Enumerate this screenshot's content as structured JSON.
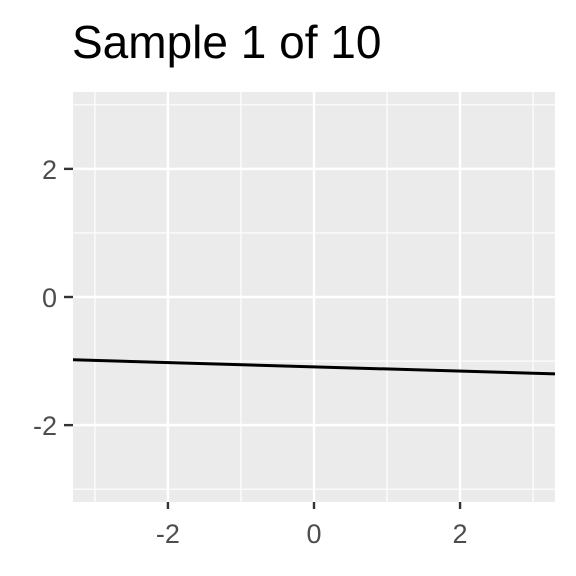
{
  "chart_data": {
    "type": "line",
    "title": "Sample 1 of 10",
    "xlabel": "",
    "ylabel": "",
    "xlim": [
      -3.3,
      3.3
    ],
    "ylim": [
      -3.2,
      3.2
    ],
    "x_ticks": [
      -2,
      0,
      2
    ],
    "x_tick_labels": [
      "-2",
      "0",
      "2"
    ],
    "y_ticks": [
      -2,
      0,
      2
    ],
    "y_tick_labels": [
      "-2",
      "0",
      "2"
    ],
    "grid": true,
    "panel_color": "#ebebeb",
    "grid_color": "#ffffff",
    "line_color": "#000000",
    "series": [
      {
        "x": [
          -3.3,
          3.3
        ],
        "y": [
          -0.98,
          -1.2
        ]
      }
    ]
  }
}
